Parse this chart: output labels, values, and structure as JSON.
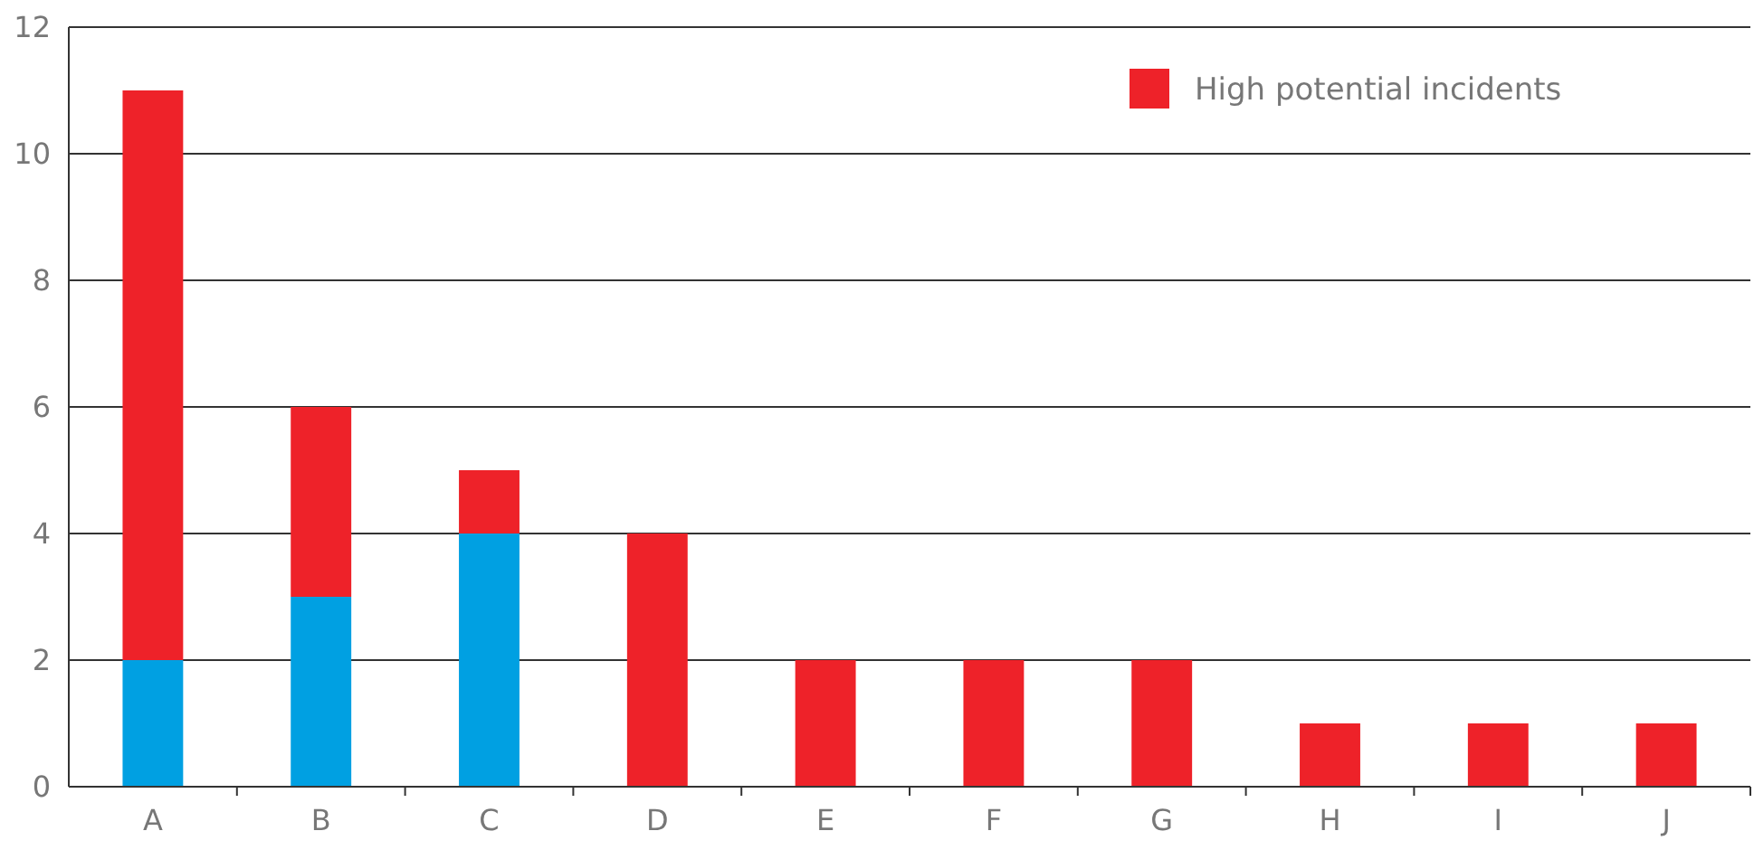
{
  "chart_data": {
    "type": "bar",
    "stacked": true,
    "categories": [
      "A",
      "B",
      "C",
      "D",
      "E",
      "F",
      "G",
      "H",
      "I",
      "J"
    ],
    "series": [
      {
        "color": "#00a0e2",
        "values": [
          2,
          3,
          4,
          0,
          0,
          0,
          0,
          0,
          0,
          0
        ]
      },
      {
        "name": "High potential incidents",
        "color": "#ee2229",
        "values": [
          9,
          3,
          1,
          4,
          2,
          2,
          2,
          1,
          1,
          1
        ]
      }
    ],
    "ylim": [
      0,
      12
    ],
    "yticks": [
      0,
      2,
      4,
      6,
      8,
      10,
      12
    ],
    "grid": "y",
    "legend": "top right"
  }
}
